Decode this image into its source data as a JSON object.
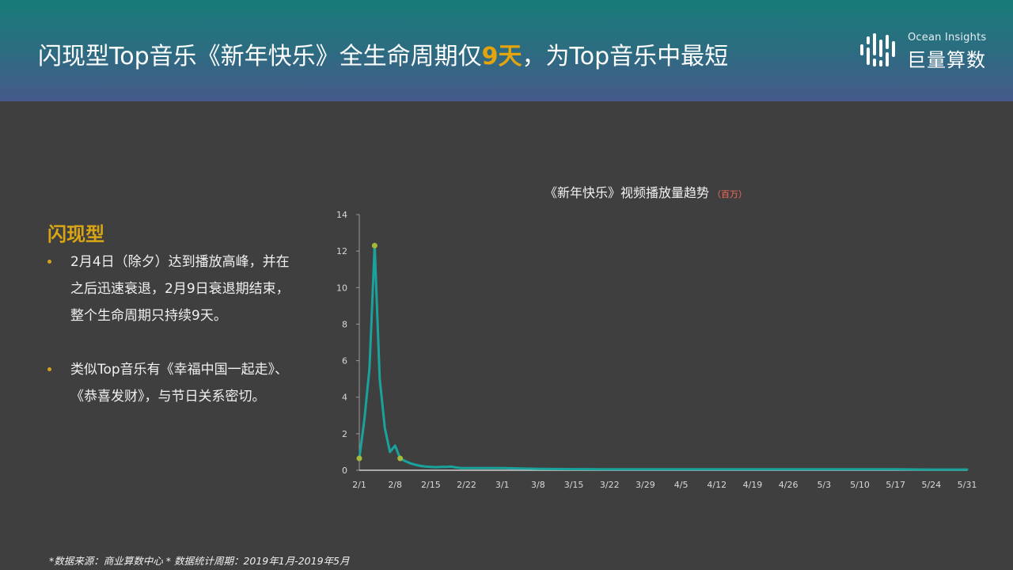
{
  "header": {
    "title_pre": "闪现型Top音乐《新年快乐》全生命周期仅",
    "title_highlight": "9天",
    "title_post": "，为Top音乐中最短",
    "gradient_top": "#177c79",
    "gradient_bottom": "#455a8a",
    "highlight_color": "#e3a40c"
  },
  "logo": {
    "icon": "ocean-insights-bars-icon",
    "en": "Ocean Insights",
    "cn": "巨量算数"
  },
  "sidebar": {
    "title": "闪现型",
    "bullets": [
      {
        "text": "2月4日（除夕）达到播放高峰，并在之后迅速衰退，2月9日衰退期结束，整个生命周期只持续9天。"
      },
      {
        "text": "类似Top音乐有《幸福中国一起走》、《恭喜发财》，与节日关系密切。"
      }
    ]
  },
  "chart_title": {
    "text": "《新年快乐》视频播放量趋势",
    "unit": "（百万）"
  },
  "footer": {
    "text": "*数据来源：商业算数中心 * 数据统计周期：2019年1月-2019年5月"
  },
  "chart_data": {
    "type": "line",
    "title": "《新年快乐》视频播放量趋势",
    "unit": "百万",
    "xlabel": "",
    "ylabel": "播放量（百万）",
    "ylim": [
      0,
      14
    ],
    "yticks": [
      0,
      2,
      4,
      6,
      8,
      10,
      12,
      14
    ],
    "xticks": [
      "2/1",
      "2/8",
      "2/15",
      "2/22",
      "3/1",
      "3/8",
      "3/15",
      "3/22",
      "3/29",
      "4/5",
      "4/12",
      "4/19",
      "4/26",
      "5/3",
      "5/10",
      "5/17",
      "5/24",
      "5/31"
    ],
    "x_range": [
      "2/1",
      "5/31"
    ],
    "grid": false,
    "legend": null,
    "line_color": "#1aa39c",
    "marker_color": "#a6b83a",
    "highlighted_points": [
      {
        "x": "2/1",
        "y": 0.65
      },
      {
        "x": "2/4",
        "y": 12.3
      },
      {
        "x": "2/9",
        "y": 0.65
      }
    ],
    "series": [
      {
        "name": "播放量",
        "x": [
          "2/1",
          "2/2",
          "2/3",
          "2/4",
          "2/5",
          "2/6",
          "2/7",
          "2/8",
          "2/9",
          "2/10",
          "2/11",
          "2/12",
          "2/13",
          "2/14",
          "2/15",
          "2/16",
          "2/17",
          "2/18",
          "2/19",
          "2/20",
          "2/21",
          "2/22",
          "2/25",
          "3/1",
          "3/8",
          "3/15",
          "3/22",
          "3/29",
          "4/5",
          "4/12",
          "4/19",
          "4/26",
          "5/3",
          "5/10",
          "5/17",
          "5/24",
          "5/31"
        ],
        "values": [
          0.65,
          2.8,
          5.6,
          12.3,
          5.0,
          2.3,
          1.0,
          1.35,
          0.65,
          0.5,
          0.38,
          0.3,
          0.24,
          0.2,
          0.18,
          0.17,
          0.18,
          0.18,
          0.2,
          0.15,
          0.12,
          0.12,
          0.12,
          0.12,
          0.08,
          0.06,
          0.05,
          0.05,
          0.05,
          0.05,
          0.05,
          0.05,
          0.05,
          0.05,
          0.05,
          0.04,
          0.04
        ]
      }
    ]
  }
}
